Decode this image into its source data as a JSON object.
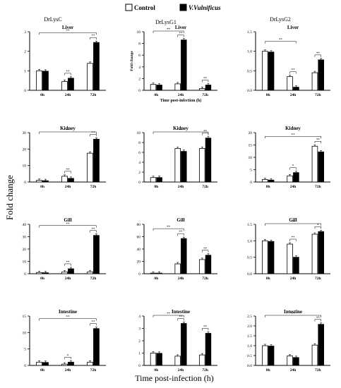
{
  "legend": {
    "items": [
      {
        "label": "Control",
        "fill": "#ffffff"
      },
      {
        "label": "V.Vulnificus",
        "fill": "#000000"
      }
    ]
  },
  "column_titles": [
    "DrLysC",
    "DrLysG1",
    "DrLysG2"
  ],
  "shared_ylabel": "Fold change",
  "shared_xlabel": "Time post-infection (h)",
  "colors": {
    "control": "#ffffff",
    "infected": "#000000",
    "axis": "#000000"
  },
  "chart_data": [
    {
      "type": "bar",
      "gene": "DrLysC",
      "title": "Liver",
      "categories": [
        "0h",
        "24h",
        "72h"
      ],
      "ylim": [
        0,
        3
      ],
      "yticks": [
        0,
        1,
        2,
        3
      ],
      "series": [
        {
          "name": "Control",
          "values": [
            1.0,
            0.45,
            1.38
          ]
        },
        {
          "name": "V.Vulnificus",
          "values": [
            0.98,
            0.62,
            2.45
          ]
        }
      ],
      "significance": [
        {
          "from": 0,
          "to": 2,
          "label": "**"
        },
        {
          "from": 1,
          "to": 1,
          "label": "**"
        },
        {
          "from": 2,
          "to": 2,
          "label": "**"
        }
      ]
    },
    {
      "type": "bar",
      "gene": "DrLysG1",
      "title": "Liver",
      "categories": [
        "0h",
        "24h",
        "72h"
      ],
      "ylim": [
        0,
        10
      ],
      "yticks": [
        0,
        2,
        4,
        6,
        8,
        10
      ],
      "ylabel": "Fold change",
      "xlabel": "Time post-infection (h)",
      "series": [
        {
          "name": "Control",
          "values": [
            1.0,
            1.1,
            0.3
          ]
        },
        {
          "name": "V.Vulnificus",
          "values": [
            0.9,
            8.6,
            0.9
          ]
        }
      ],
      "significance": [
        {
          "from": 0,
          "to": 1,
          "label": "**"
        },
        {
          "from": 1,
          "to": 1,
          "label": "**"
        },
        {
          "from": 2,
          "to": 2,
          "label": "**"
        }
      ]
    },
    {
      "type": "bar",
      "gene": "DrLysG2",
      "title": "Liver",
      "categories": [
        "0h",
        "24h",
        "72h"
      ],
      "ylim": [
        0,
        1.5
      ],
      "yticks": [
        0,
        0.5,
        1.0,
        1.5
      ],
      "ytick_labels": [
        "0.0",
        "0.5",
        "1.0",
        "1.5"
      ],
      "series": [
        {
          "name": "Control",
          "values": [
            1.0,
            0.35,
            0.45
          ]
        },
        {
          "name": "V.Vulnificus",
          "values": [
            0.98,
            0.08,
            0.78
          ]
        }
      ],
      "significance": [
        {
          "from": 0,
          "to": 1,
          "label": "**"
        },
        {
          "from": 1,
          "to": 1,
          "label": "**"
        },
        {
          "from": 2,
          "to": 2,
          "label": "**"
        }
      ]
    },
    {
      "type": "bar",
      "gene": "DrLysC",
      "title": "Kidney",
      "categories": [
        "0h",
        "24h",
        "72h"
      ],
      "ylim": [
        0,
        30
      ],
      "yticks": [
        0,
        10,
        20,
        30
      ],
      "series": [
        {
          "name": "Control",
          "values": [
            1.0,
            3.5,
            17.5
          ]
        },
        {
          "name": "V.Vulnificus",
          "values": [
            0.8,
            2.2,
            26.0
          ]
        }
      ],
      "significance": [
        {
          "from": 0,
          "to": 2,
          "label": "**"
        },
        {
          "from": 1,
          "to": 1,
          "label": "**"
        },
        {
          "from": 2,
          "to": 2,
          "label": "**"
        }
      ]
    },
    {
      "type": "bar",
      "gene": "DrLysG1",
      "title": "Kidney",
      "categories": [
        "0h",
        "24h",
        "72h"
      ],
      "ylim": [
        0,
        10
      ],
      "yticks": [
        0,
        2,
        4,
        6,
        8,
        10
      ],
      "series": [
        {
          "name": "Control",
          "values": [
            0.9,
            6.8,
            6.8
          ]
        },
        {
          "name": "V.Vulnificus",
          "values": [
            0.9,
            6.2,
            8.9
          ]
        }
      ],
      "significance": [
        {
          "from": 0,
          "to": 2,
          "label": "**"
        },
        {
          "from": 2,
          "to": 2,
          "label": "**"
        }
      ]
    },
    {
      "type": "bar",
      "gene": "DrLysG2",
      "title": "Kidney",
      "categories": [
        "0h",
        "24h",
        "72h"
      ],
      "ylim": [
        0,
        20
      ],
      "yticks": [
        0,
        5,
        10,
        15,
        20
      ],
      "series": [
        {
          "name": "Control",
          "values": [
            1.0,
            2.5,
            14.5
          ]
        },
        {
          "name": "V.Vulnificus",
          "values": [
            0.8,
            3.8,
            12.2
          ]
        }
      ],
      "significance": [
        {
          "from": 0,
          "to": 2,
          "label": "**"
        },
        {
          "from": 1,
          "to": 1,
          "label": "*"
        },
        {
          "from": 2,
          "to": 2,
          "label": "**"
        }
      ]
    },
    {
      "type": "bar",
      "gene": "DrLysC",
      "title": "Gill",
      "categories": [
        "0h",
        "24h",
        "72h"
      ],
      "ylim": [
        0,
        40
      ],
      "yticks": [
        0,
        10,
        20,
        30,
        40
      ],
      "series": [
        {
          "name": "Control",
          "values": [
            1.0,
            1.5,
            1.5
          ]
        },
        {
          "name": "V.Vulnificus",
          "values": [
            0.8,
            4.0,
            31.0
          ]
        }
      ],
      "significance": [
        {
          "from": 0,
          "to": 2,
          "label": "**"
        },
        {
          "from": 1,
          "to": 1,
          "label": "**"
        },
        {
          "from": 2,
          "to": 2,
          "label": "**"
        }
      ]
    },
    {
      "type": "bar",
      "gene": "DrLysG1",
      "title": "Gill",
      "categories": [
        "0h",
        "24h",
        "72h"
      ],
      "ylim": [
        0,
        80
      ],
      "yticks": [
        0,
        20,
        40,
        60,
        80
      ],
      "series": [
        {
          "name": "Control",
          "values": [
            1.0,
            16.0,
            23.0
          ]
        },
        {
          "name": "V.Vulnificus",
          "values": [
            1.0,
            57.0,
            30.0
          ]
        }
      ],
      "significance": [
        {
          "from": 0,
          "to": 1,
          "label": "**"
        },
        {
          "from": 1,
          "to": 1,
          "label": "**"
        },
        {
          "from": 2,
          "to": 2,
          "label": "**"
        }
      ]
    },
    {
      "type": "bar",
      "gene": "DrLysG2",
      "title": "Gill",
      "categories": [
        "0h",
        "24h",
        "72h"
      ],
      "ylim": [
        0,
        1.5
      ],
      "yticks": [
        0,
        0.5,
        1.0,
        1.5
      ],
      "ytick_labels": [
        "0.0",
        "0.5",
        "1.0",
        "1.5"
      ],
      "series": [
        {
          "name": "Control",
          "values": [
            1.0,
            0.9,
            1.2
          ]
        },
        {
          "name": "V.Vulnificus",
          "values": [
            0.98,
            0.5,
            1.28
          ]
        }
      ],
      "significance": [
        {
          "from": 0,
          "to": 2,
          "label": "**"
        },
        {
          "from": 1,
          "to": 1,
          "label": "**"
        },
        {
          "from": 2,
          "to": 2,
          "label": "*"
        }
      ]
    },
    {
      "type": "bar",
      "gene": "DrLysC",
      "title": "Intestine",
      "categories": [
        "0h",
        "24h",
        "72h"
      ],
      "ylim": [
        0,
        15
      ],
      "yticks": [
        0,
        5,
        10,
        15
      ],
      "series": [
        {
          "name": "Control",
          "values": [
            1.0,
            0.4,
            1.0
          ]
        },
        {
          "name": "V.Vulnificus",
          "values": [
            0.9,
            1.0,
            11.2
          ]
        }
      ],
      "significance": [
        {
          "from": 0,
          "to": 2,
          "label": "**"
        },
        {
          "from": 1,
          "to": 1,
          "label": "*"
        },
        {
          "from": 2,
          "to": 2,
          "label": "**"
        }
      ]
    },
    {
      "type": "bar",
      "gene": "DrLysG1",
      "title": "Intestine",
      "categories": [
        "0h",
        "24h",
        "72h"
      ],
      "ylim": [
        0,
        4
      ],
      "yticks": [
        0,
        1,
        2,
        3,
        4
      ],
      "series": [
        {
          "name": "Control",
          "values": [
            1.0,
            0.75,
            0.85
          ]
        },
        {
          "name": "V.Vulnificus",
          "values": [
            0.98,
            3.4,
            2.6
          ]
        }
      ],
      "significance": [
        {
          "from": 0,
          "to": 1,
          "label": "**"
        },
        {
          "from": 1,
          "to": 1,
          "label": "**"
        },
        {
          "from": 2,
          "to": 2,
          "label": "**"
        }
      ]
    },
    {
      "type": "bar",
      "gene": "DrLysG2",
      "title": "Intestine",
      "categories": [
        "0h",
        "24h",
        "72h"
      ],
      "ylim": [
        0,
        2.5
      ],
      "yticks": [
        0,
        0.5,
        1.0,
        1.5,
        2.0,
        2.5
      ],
      "ytick_labels": [
        "0.0",
        "0.5",
        "1.0",
        "1.5",
        "2.0",
        "2.5"
      ],
      "series": [
        {
          "name": "Control",
          "values": [
            1.0,
            0.48,
            1.03
          ]
        },
        {
          "name": "V.Vulnificus",
          "values": [
            0.98,
            0.4,
            2.08
          ]
        }
      ],
      "significance": [
        {
          "from": 0,
          "to": 2,
          "label": "**"
        },
        {
          "from": 2,
          "to": 2,
          "label": "**"
        }
      ]
    }
  ]
}
